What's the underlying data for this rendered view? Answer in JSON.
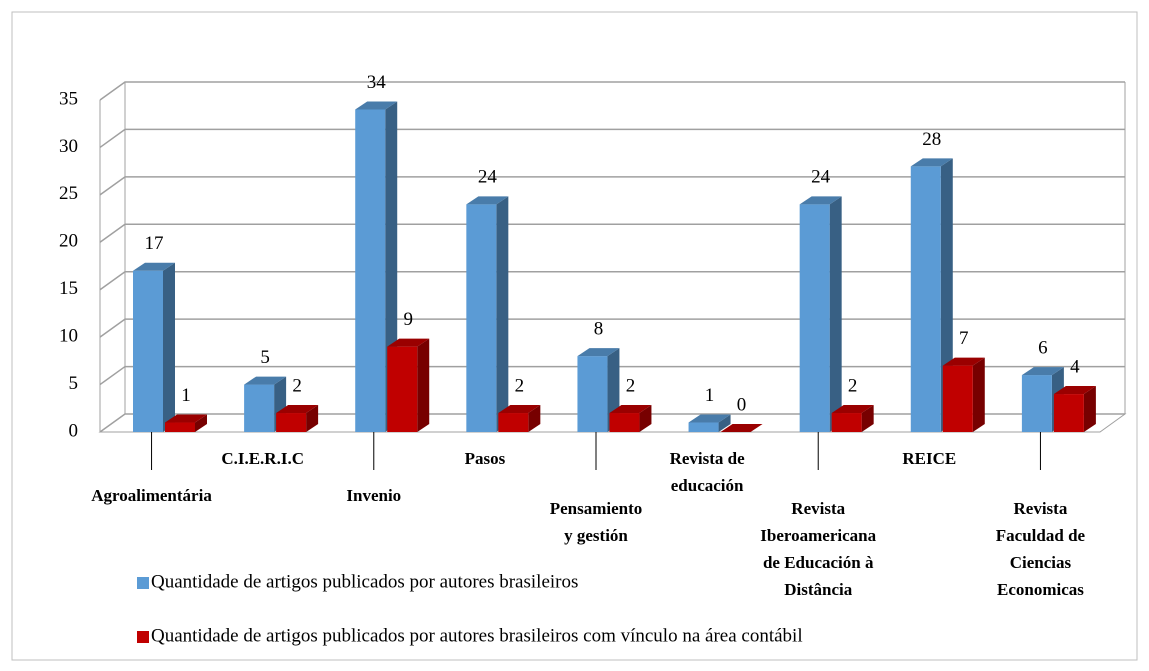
{
  "chart_data": {
    "type": "bar3d",
    "categories": [
      "Agroalimentária",
      "C.I.E.R.I.C",
      "Invenio",
      "Pasos",
      "Pensamiento\ny gestión",
      "Revista de\neducación",
      "Revista\nIberoamericana\nde Educación à\nDistância",
      "REICE",
      "Revista\nFaculdad de\nCiencias\nEconomicas"
    ],
    "series": [
      {
        "name": "Quantidade de artigos publicados por autores brasileiros",
        "color": "#5b9bd5",
        "values": [
          17,
          5,
          34,
          24,
          8,
          1,
          24,
          28,
          6
        ]
      },
      {
        "name": "Quantidade de artigos publicados por autores brasileiros com vínculo na área contábil",
        "color": "#c00000",
        "values": [
          1,
          2,
          9,
          2,
          2,
          0,
          2,
          7,
          4
        ]
      }
    ],
    "ylim": [
      0,
      35
    ],
    "yticks": [
      0,
      5,
      10,
      15,
      20,
      25,
      30,
      35
    ],
    "grid": true,
    "legend": "bottom"
  }
}
